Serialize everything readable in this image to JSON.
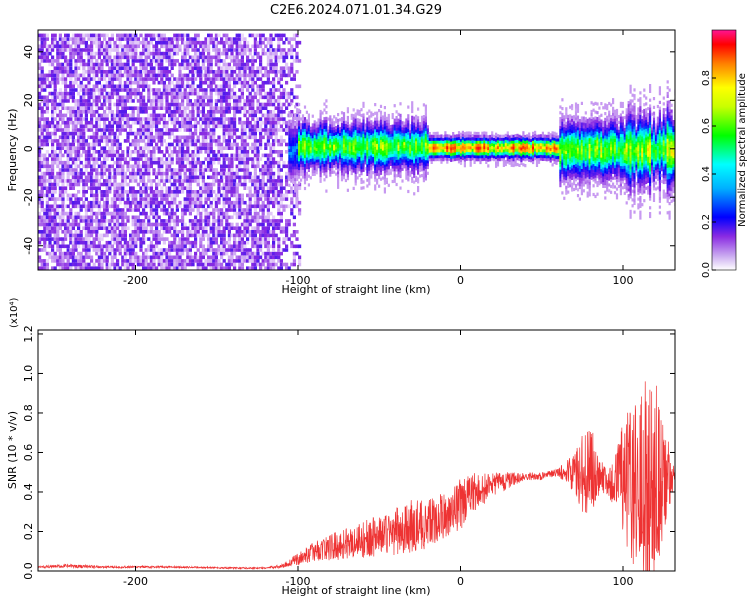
{
  "title": "C2E6.2024.071.01.34.G29",
  "chart_data": [
    {
      "type": "heatmap",
      "xlabel": "Height of straight line (km)",
      "ylabel": "Frequency (Hz)",
      "xlim": [
        -260,
        132
      ],
      "ylim": [
        -50,
        49
      ],
      "x_ticks": [
        -200,
        -100,
        0,
        100
      ],
      "y_ticks": [
        -40,
        -20,
        0,
        20,
        40
      ],
      "colorbar": {
        "label": "Normalized spectral amplitude",
        "range": [
          0,
          1
        ],
        "ticks": [
          0.0,
          0.2,
          0.4,
          0.6,
          0.8
        ],
        "colormap": [
          "#ffffff",
          "#8a2be2",
          "#0000ff",
          "#00ffff",
          "#00ff00",
          "#ffff00",
          "#ff8000",
          "#ff0000",
          "#ff1493"
        ]
      },
      "regions": [
        {
          "x_range": [
            -260,
            -105
          ],
          "freq_range": [
            -50,
            49
          ],
          "description": "broadband noise",
          "amplitude": 0.1
        },
        {
          "x_range": [
            -105,
            132
          ],
          "center_freq": 0,
          "amplitude": 0.4
        },
        {
          "x_range": [
            -20,
            60
          ],
          "center_freq": 1,
          "amplitude": 0.85
        },
        {
          "x_range": [
            60,
            132
          ],
          "center_freq": 0,
          "amplitude": 0.55
        }
      ]
    },
    {
      "type": "line",
      "xlabel": "Height of straight line (km)",
      "ylabel": "SNR (10 * v/v)",
      "y_multiplier": "(x10⁴)",
      "xlim": [
        -260,
        132
      ],
      "ylim": [
        0,
        1.22
      ],
      "x_ticks": [
        -200,
        -100,
        0,
        100
      ],
      "y_ticks": [
        0.0,
        0.2,
        0.4,
        0.6,
        0.8,
        1.0,
        1.2
      ],
      "color": "#ee3333",
      "series": [
        {
          "x": [
            -260,
            -240,
            -220,
            -200,
            -180,
            -160,
            -140,
            -120,
            -110,
            -100,
            -90,
            -80,
            -70,
            -60,
            -50,
            -40,
            -30,
            -20,
            -10,
            0,
            10,
            20,
            30,
            40,
            50,
            60,
            70,
            75,
            80,
            85,
            90,
            95,
            100,
            105,
            110,
            115,
            120,
            125,
            132
          ],
          "y": [
            0.02,
            0.025,
            0.02,
            0.02,
            0.02,
            0.018,
            0.015,
            0.015,
            0.025,
            0.06,
            0.1,
            0.12,
            0.14,
            0.16,
            0.18,
            0.2,
            0.22,
            0.24,
            0.28,
            0.34,
            0.4,
            0.44,
            0.46,
            0.48,
            0.48,
            0.5,
            0.5,
            0.5,
            0.5,
            0.48,
            0.46,
            0.45,
            0.46,
            0.45,
            0.44,
            0.44,
            0.46,
            0.47,
            0.48
          ],
          "spread": [
            0.005,
            0.01,
            0.005,
            0.005,
            0.005,
            0.004,
            0.004,
            0.004,
            0.01,
            0.03,
            0.05,
            0.07,
            0.08,
            0.1,
            0.1,
            0.12,
            0.14,
            0.12,
            0.12,
            0.13,
            0.1,
            0.06,
            0.04,
            0.02,
            0.02,
            0.02,
            0.1,
            0.2,
            0.25,
            0.1,
            0.08,
            0.12,
            0.3,
            0.4,
            0.45,
            0.55,
            0.5,
            0.3,
            0.02
          ]
        }
      ]
    }
  ]
}
